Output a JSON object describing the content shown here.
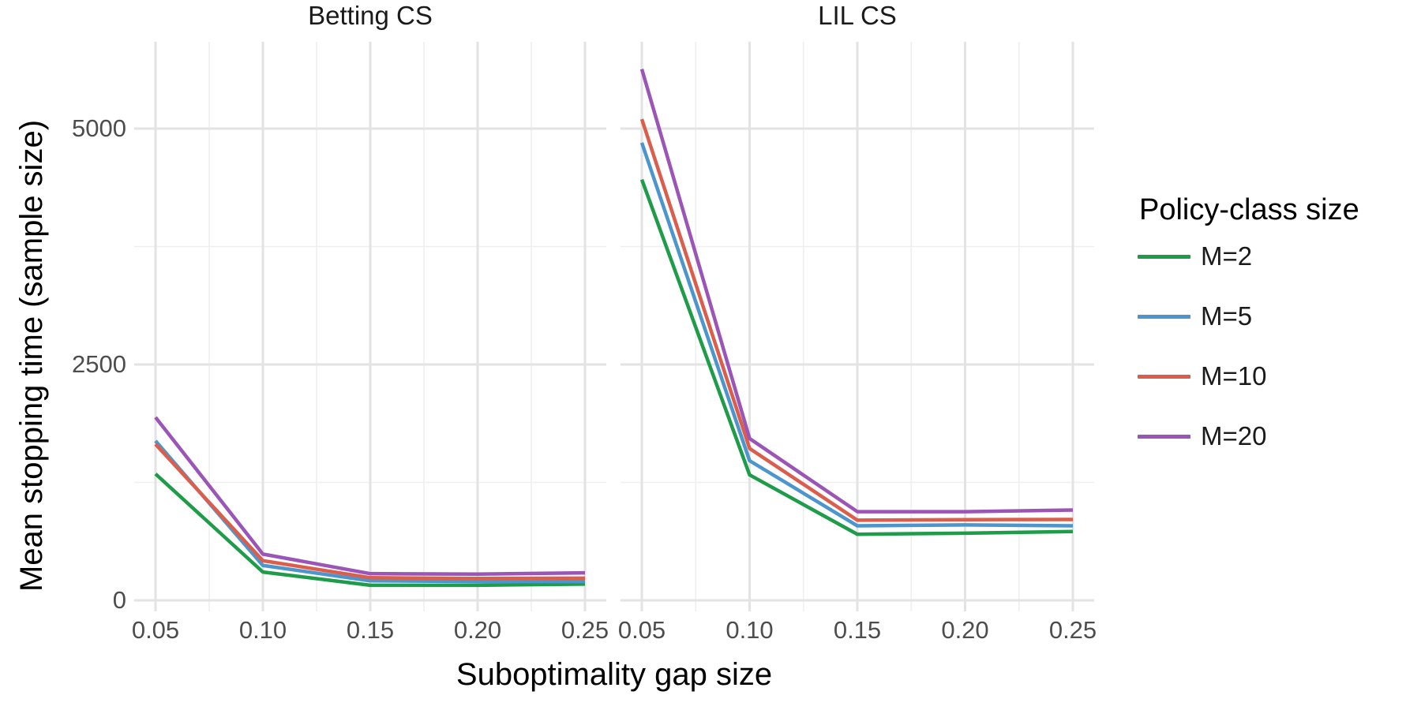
{
  "chart_data": {
    "type": "line",
    "xlabel": "Suboptimality gap size",
    "ylabel": "Mean stopping time (sample size)",
    "x": [
      0.05,
      0.1,
      0.15,
      0.2,
      0.25
    ],
    "xtick_labels": [
      "0.05",
      "0.10",
      "0.15",
      "0.20",
      "0.25"
    ],
    "yticks": [
      0,
      2500,
      5000
    ],
    "ytick_labels": [
      "0",
      "2500",
      "5000"
    ],
    "ylim": [
      0,
      5800
    ],
    "grid": "major+minor",
    "y_minor_ticks": [
      1250,
      3750
    ],
    "facets": [
      {
        "title": "Betting CS",
        "series": [
          {
            "name": "M=2",
            "color": "#1e9c49",
            "values": [
              1340,
              300,
              160,
              160,
              172
            ]
          },
          {
            "name": "M=5",
            "color": "#4c96cd",
            "values": [
              1690,
              370,
              207,
              200,
              200
            ]
          },
          {
            "name": "M=10",
            "color": "#db5e4d",
            "values": [
              1655,
              420,
              240,
              232,
              235
            ]
          },
          {
            "name": "M=20",
            "color": "#9b55b6",
            "values": [
              1940,
              490,
              283,
              278,
              292
            ]
          }
        ]
      },
      {
        "title": "LIL CS",
        "series": [
          {
            "name": "M=2",
            "color": "#1e9c49",
            "values": [
              4460,
              1330,
              700,
              712,
              730
            ]
          },
          {
            "name": "M=5",
            "color": "#4c96cd",
            "values": [
              4850,
              1480,
              790,
              800,
              790
            ]
          },
          {
            "name": "M=10",
            "color": "#db5e4d",
            "values": [
              5100,
              1610,
              850,
              855,
              857
            ]
          },
          {
            "name": "M=20",
            "color": "#9b55b6",
            "values": [
              5630,
              1715,
              940,
              940,
              957
            ]
          }
        ]
      }
    ],
    "legend": {
      "title": "Policy-class size",
      "position": "right",
      "items": [
        {
          "label": "M=2",
          "color": "#1e9c49"
        },
        {
          "label": "M=5",
          "color": "#4c96cd"
        },
        {
          "label": "M=10",
          "color": "#db5e4d"
        },
        {
          "label": "M=20",
          "color": "#9b55b6"
        }
      ]
    },
    "style": {
      "grid_major_color": "#e3e3e3",
      "grid_minor_color": "#efefef",
      "tick_label_color": "#4d4d4d",
      "line_width": 4.5
    }
  }
}
